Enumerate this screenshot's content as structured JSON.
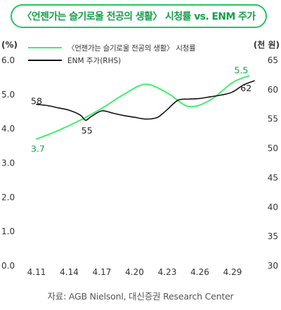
{
  "title": "〈언젠가는 슬기로울 전공의 생활〉 시청률 vs. ENM 주가",
  "source": "자료: AGB Nielsonl, 대신증권 Research Center",
  "colors": {
    "green": "#3ef06a",
    "black": "#111111",
    "accent": "#14a04c"
  },
  "chart_data": {
    "type": "line",
    "left_unit": "(%)",
    "right_unit": "(천 원)",
    "y_left": {
      "min": 0,
      "max": 6,
      "ticks": [
        "0.0",
        "1.0",
        "2.0",
        "3.0",
        "4.0",
        "5.0",
        "6.0"
      ]
    },
    "y_right": {
      "min": 30,
      "max": 65,
      "ticks": [
        "30",
        "35",
        "40",
        "45",
        "50",
        "55",
        "60",
        "65"
      ]
    },
    "x_range": [
      0,
      20
    ],
    "x_ticks": [
      {
        "x": 0,
        "label": "4.11"
      },
      {
        "x": 3,
        "label": "4.14"
      },
      {
        "x": 6,
        "label": "4.17"
      },
      {
        "x": 9,
        "label": "4.20"
      },
      {
        "x": 12,
        "label": "4.23"
      },
      {
        "x": 15,
        "label": "4.26"
      },
      {
        "x": 18,
        "label": "4.29"
      }
    ],
    "series": [
      {
        "name": "〈언젠가는 슬기로울 전공의 생활〉 시청률",
        "axis": "left",
        "color": "#3ef06a",
        "points": [
          [
            0,
            3.7
          ],
          [
            2,
            3.95
          ],
          [
            4,
            4.25
          ],
          [
            6,
            4.6
          ],
          [
            8,
            5.0
          ],
          [
            10,
            5.3
          ],
          [
            12,
            5.05
          ],
          [
            14,
            4.65
          ],
          [
            16,
            4.85
          ],
          [
            18,
            5.35
          ],
          [
            19.5,
            5.55
          ]
        ],
        "labels": [
          {
            "x": 0,
            "y": 3.7,
            "text": "3.7"
          },
          {
            "x": 19,
            "y": 5.5,
            "text": "5.5"
          }
        ]
      },
      {
        "name": "ENM 주가(RHS)",
        "axis": "right",
        "color": "#111111",
        "points": [
          [
            0,
            57.5
          ],
          [
            1,
            57.3
          ],
          [
            2,
            56.9
          ],
          [
            3,
            56.5
          ],
          [
            4,
            55.7
          ],
          [
            4.5,
            54.8
          ],
          [
            5,
            55.4
          ],
          [
            6,
            56.4
          ],
          [
            7,
            56.0
          ],
          [
            8,
            55.6
          ],
          [
            9,
            55.3
          ],
          [
            10,
            55.0
          ],
          [
            11,
            55.2
          ],
          [
            11.5,
            55.8
          ],
          [
            12,
            56.6
          ],
          [
            13,
            58.2
          ],
          [
            14,
            58.4
          ],
          [
            15,
            58.5
          ],
          [
            16,
            58.8
          ],
          [
            17,
            59.1
          ],
          [
            18,
            59.6
          ],
          [
            19,
            60.8
          ],
          [
            20,
            61.5
          ]
        ],
        "labels": [
          {
            "x": 0,
            "y": 58,
            "text": "58"
          },
          {
            "x": 4.5,
            "y": 55,
            "text": "55"
          },
          {
            "x": 19.5,
            "y": 62,
            "text": "62"
          }
        ]
      }
    ]
  }
}
